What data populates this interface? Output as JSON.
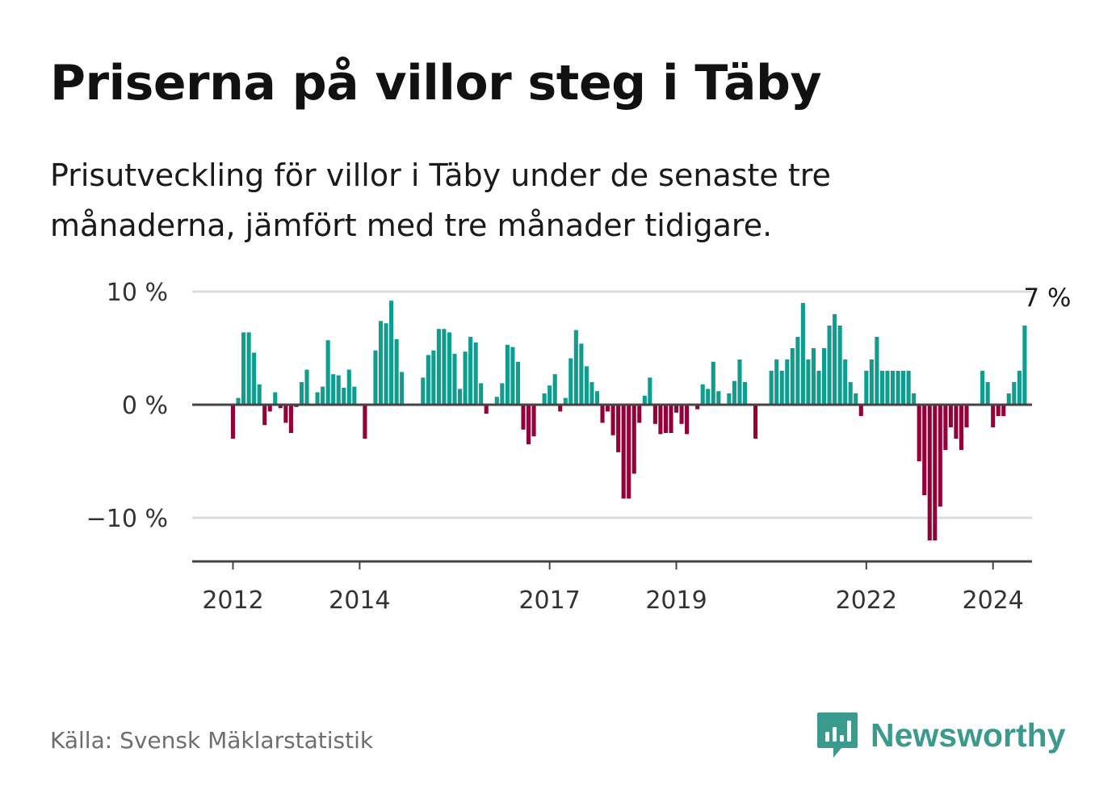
{
  "title": "Priserna på villor steg i Täby",
  "subtitle": "Prisutveckling för villor i Täby under de senaste tre månaderna, jämfört med tre månader tidigare.",
  "source": "Källa: Svensk Mäklarstatistik",
  "brand": "Newsworthy",
  "colors": {
    "positive": "#0f9d8f",
    "negative": "#960039",
    "grid": "#dcdcdc",
    "axis": "#444444",
    "brand": "#3a9a8e"
  },
  "chart_data": {
    "type": "bar",
    "title": "Priserna på villor steg i Täby",
    "xlabel": "",
    "ylabel": "",
    "ylim": [
      -13.5,
      10
    ],
    "y_ticks": [
      {
        "value": 10,
        "label": "10 %"
      },
      {
        "value": 0,
        "label": "0 %"
      },
      {
        "value": -10,
        "label": "−10 %"
      }
    ],
    "x_ticks": [
      {
        "month_index": 0,
        "label": "2012"
      },
      {
        "month_index": 24,
        "label": "2014"
      },
      {
        "month_index": 60,
        "label": "2017"
      },
      {
        "month_index": 84,
        "label": "2019"
      },
      {
        "month_index": 120,
        "label": "2022"
      },
      {
        "month_index": 144,
        "label": "2024"
      }
    ],
    "start_month_offset": -7,
    "last_value_label": "7 %",
    "unit": "%",
    "values": [
      null,
      null,
      null,
      null,
      null,
      null,
      null,
      -3,
      0.6,
      6.4,
      6.4,
      4.6,
      1.8,
      -1.8,
      -0.6,
      1.1,
      -0.3,
      -1.6,
      -2.5,
      -0.2,
      2,
      3.1,
      0,
      1.1,
      1.6,
      5.7,
      2.7,
      2.6,
      1.5,
      3.1,
      1.6,
      0,
      -3,
      0,
      4.8,
      7.4,
      7.2,
      9.2,
      5.8,
      2.9,
      0,
      0,
      0,
      2.4,
      4.4,
      4.8,
      6.7,
      6.7,
      6.4,
      4.5,
      1.4,
      4.7,
      6,
      5.5,
      1.9,
      -0.8,
      0,
      0.7,
      1.9,
      5.3,
      5.1,
      3.8,
      -2.2,
      -3.5,
      -2.8,
      0,
      1,
      1.7,
      2.7,
      -0.6,
      0.6,
      4.1,
      6.6,
      5.4,
      3.4,
      2,
      1.2,
      -1.6,
      -0.6,
      -2.7,
      -4.2,
      -8.3,
      -8.3,
      -6.1,
      -1.6,
      0.8,
      2.4,
      -1.7,
      -2.6,
      -2.5,
      -2.5,
      -0.7,
      -1.7,
      -2.6,
      0,
      -0.4,
      1.8,
      1.4,
      3.8,
      1.2,
      0,
      1,
      2.1,
      4,
      2,
      0,
      -3,
      0,
      0,
      3,
      4,
      3,
      4,
      5,
      6,
      9,
      4,
      5,
      3,
      5,
      7,
      8,
      7,
      4,
      2,
      1,
      -1,
      3,
      4,
      6,
      3,
      3,
      3,
      3,
      3,
      3,
      1,
      -5,
      -8,
      -12,
      -12,
      -9,
      -4,
      -2,
      -3,
      -4,
      -2,
      0,
      0,
      3,
      2,
      -2,
      -1,
      -1,
      1,
      2,
      3,
      7
    ]
  }
}
